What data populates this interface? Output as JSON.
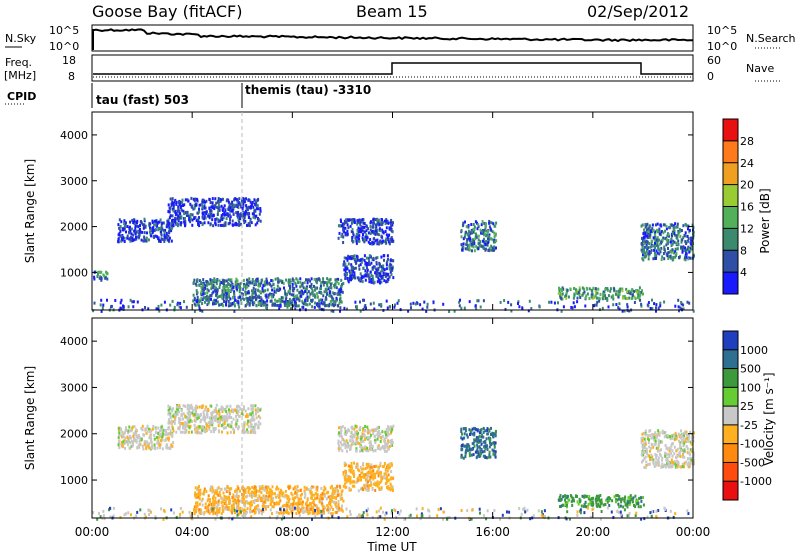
{
  "header": {
    "station": "Goose Bay (fitACF)",
    "beam": "Beam 15",
    "date": "02/Sep/2012"
  },
  "noise_panel": {
    "left_label": "N.Sky",
    "right_label": "N.Search",
    "y_ticks": [
      "10^5",
      "10^0"
    ],
    "right_ticks": [
      "10^5",
      "10^0"
    ]
  },
  "freq_panel": {
    "left_label": "Freq.",
    "left_unit": "[MHz]",
    "right_label": "Nave",
    "y_ticks": [
      "18",
      "8"
    ],
    "right_ticks": [
      "60",
      "0"
    ]
  },
  "cpid": {
    "label": "CPID",
    "modes": [
      {
        "name": "tau (fast) 503",
        "start_hour": 0.0
      },
      {
        "name": "themis (tau) -3310",
        "start_hour": 6.0
      }
    ]
  },
  "chart_data": [
    {
      "type": "heatmap",
      "name": "power",
      "ylabel": "Slant Range [km]",
      "xlabel": "Time UT",
      "x_ticks": [
        "00:00",
        "04:00",
        "08:00",
        "12:00",
        "16:00",
        "20:00",
        "00:00"
      ],
      "xlim_hours": [
        0,
        24
      ],
      "y_ticks": [
        1000,
        2000,
        3000,
        4000
      ],
      "ylim": [
        180,
        4500
      ],
      "colorbar": {
        "label": "Power [dB]",
        "ticks": [
          4,
          8,
          12,
          16,
          20,
          24,
          28
        ],
        "colors": [
          "#1a1aff",
          "#2f4fa6",
          "#3b8a6e",
          "#52b05a",
          "#99cc33",
          "#f0a020",
          "#ff7a1a",
          "#e81010"
        ]
      },
      "echo_regions": [
        {
          "t0": 1.0,
          "t1": 3.2,
          "r0": 1700,
          "r1": 2200,
          "level": 8
        },
        {
          "t0": 3.0,
          "t1": 6.7,
          "r0": 2050,
          "r1": 2650,
          "level": 8
        },
        {
          "t0": 9.8,
          "t1": 12.0,
          "r0": 1650,
          "r1": 2200,
          "level": 8
        },
        {
          "t0": 10.0,
          "t1": 12.0,
          "r0": 800,
          "r1": 1400,
          "level": 8
        },
        {
          "t0": 14.7,
          "t1": 16.1,
          "r0": 1500,
          "r1": 2150,
          "level": 12
        },
        {
          "t0": 18.6,
          "t1": 22.0,
          "r0": 450,
          "r1": 700,
          "level": 16
        },
        {
          "t0": 21.9,
          "t1": 24.0,
          "r0": 1300,
          "r1": 2100,
          "level": 12
        },
        {
          "t0": 0.0,
          "t1": 0.6,
          "r0": 850,
          "r1": 1050,
          "level": 12
        },
        {
          "t0": 4.0,
          "t1": 10.0,
          "r0": 300,
          "r1": 900,
          "level": 12
        }
      ]
    },
    {
      "type": "heatmap",
      "name": "velocity",
      "ylabel": "Slant Range [km]",
      "xlabel": "Time UT",
      "x_ticks": [
        "00:00",
        "04:00",
        "08:00",
        "12:00",
        "16:00",
        "20:00",
        "00:00"
      ],
      "xlim_hours": [
        0,
        24
      ],
      "y_ticks": [
        1000,
        2000,
        3000,
        4000
      ],
      "ylim": [
        180,
        4500
      ],
      "colorbar": {
        "label": "Velocity [m s⁻¹]",
        "ticks": [
          "1000",
          "500",
          "100",
          "25",
          "-25",
          "-100",
          "-500",
          "-1000"
        ],
        "colors": [
          "#1f3fbf",
          "#2f6f8f",
          "#3c9a3c",
          "#66cc33",
          "#c8c8c8",
          "#ffb020",
          "#ff8a10",
          "#ff4a10",
          "#e81010"
        ]
      },
      "echo_regions": [
        {
          "t0": 1.0,
          "t1": 3.2,
          "r0": 1700,
          "r1": 2200,
          "level": "-25"
        },
        {
          "t0": 3.0,
          "t1": 6.7,
          "r0": 2050,
          "r1": 2650,
          "level": "-25"
        },
        {
          "t0": 9.8,
          "t1": 12.0,
          "r0": 1650,
          "r1": 2200,
          "level": "-25"
        },
        {
          "t0": 10.0,
          "t1": 12.0,
          "r0": 800,
          "r1": 1400,
          "level": "-100"
        },
        {
          "t0": 14.7,
          "t1": 16.1,
          "r0": 1500,
          "r1": 2150,
          "level": "500"
        },
        {
          "t0": 18.6,
          "t1": 22.0,
          "r0": 450,
          "r1": 700,
          "level": "100"
        },
        {
          "t0": 21.9,
          "t1": 24.0,
          "r0": 1300,
          "r1": 2100,
          "level": "-25"
        },
        {
          "t0": 4.0,
          "t1": 10.0,
          "r0": 300,
          "r1": 900,
          "level": "-100"
        }
      ]
    }
  ]
}
